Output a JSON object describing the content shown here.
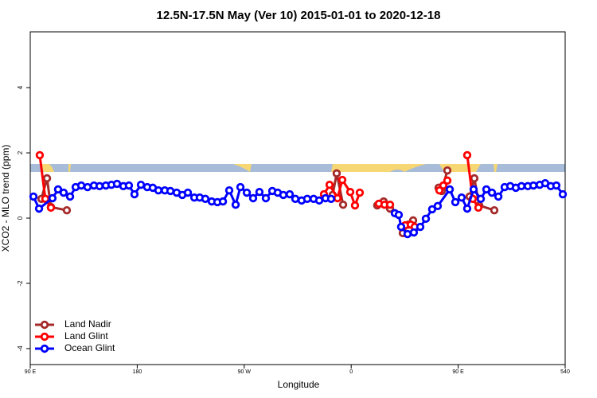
{
  "chart_data": {
    "type": "line",
    "title": "12.5N-17.5N May (Ver 10)   2015-01-01 to 2020-12-18",
    "x_label": "Longitude",
    "y_label": "XCO2 - MLO trend (ppm)",
    "xlim": [
      90,
      540
    ],
    "ylim": [
      -4.49,
      5.71
    ],
    "xticks": [
      {
        "value": 90,
        "label": "90 E"
      },
      180,
      {
        "value": 270,
        "label": "90 W"
      },
      {
        "value": 360,
        "label": "0"
      },
      {
        "value": 450,
        "label": "90 E"
      },
      540
    ],
    "yticks": [
      -4,
      -2,
      0,
      2,
      4
    ],
    "legend": "bottom-left",
    "series": [
      {
        "name": "Land Nadir",
        "color": "#a52a2a",
        "x": [
          99.4,
          104.1,
          107.4,
          120.8,
          null,
          344.4,
          347.8,
          353.2,
          null,
          381.9,
          387.3,
          392.7,
          null,
          403.4,
          408.1,
          412.1,
          null,
          433.5,
          436.2,
          440.9,
          null,
          459.6,
          463.6,
          467.7,
          480.4
        ],
        "values": [
          0.59,
          1.22,
          0.34,
          0.24,
          null,
          0.71,
          1.37,
          0.41,
          null,
          0.39,
          0.51,
          0.29,
          null,
          -0.46,
          -0.2,
          -0.07,
          null,
          0.93,
          0.83,
          1.46,
          null,
          0.66,
          1.22,
          0.39,
          0.24
        ]
      },
      {
        "name": "Land Glint",
        "color": "#ff0000",
        "x": [
          98.0,
          102.7,
          107.4,
          null,
          337.1,
          341.8,
          348.5,
          352.5,
          359.2,
          363.2,
          367.2,
          null,
          383.3,
          388.0,
          392.7,
          null,
          405.4,
          410.1,
          413.4,
          null,
          434.2,
          437.5,
          440.9,
          null,
          457.6,
          462.3,
          467.0
        ],
        "values": [
          1.93,
          0.59,
          0.32,
          null,
          0.73,
          1.02,
          0.61,
          1.17,
          0.8,
          0.39,
          0.78,
          null,
          0.44,
          0.41,
          0.41,
          null,
          -0.22,
          -0.2,
          -0.27,
          null,
          0.85,
          1.0,
          1.15,
          null,
          1.93,
          0.59,
          0.32
        ]
      },
      {
        "name": "Ocean Glint",
        "color": "#0000ff",
        "x": [
          92.7,
          97.4,
          108.7,
          113.4,
          118.1,
          123.5,
          128.2,
          132.9,
          138.2,
          143.6,
          148.3,
          153.6,
          158.3,
          163.0,
          168.3,
          173.0,
          177.7,
          183.1,
          188.4,
          193.1,
          197.8,
          203.2,
          207.9,
          213.2,
          217.9,
          222.6,
          228.0,
          232.6,
          237.3,
          242.7,
          247.4,
          252.1,
          257.4,
          262.8,
          266.8,
          272.2,
          277.5,
          282.8,
          288.2,
          293.6,
          298.2,
          302.9,
          308.3,
          313.0,
          318.3,
          323.0,
          328.4,
          333.1,
          338.4,
          343.1,
          null,
          396.7,
          400.0,
          402.0,
          407.4,
          412.7,
          418.1,
          422.8,
          428.1,
          432.8,
          442.9,
          447.6,
          452.9,
          457.6,
          463.0,
          469.0,
          473.7,
          478.4,
          483.8,
          489.1,
          493.8,
          498.5,
          503.2,
          508.6,
          513.3,
          518.6,
          523.2,
          527.9,
          532.6,
          538.0
        ],
        "values": [
          0.66,
          0.29,
          0.61,
          0.88,
          0.78,
          0.66,
          0.95,
          1.0,
          0.95,
          1.0,
          0.98,
          1.0,
          1.02,
          1.05,
          0.98,
          1.0,
          0.73,
          1.02,
          0.95,
          0.93,
          0.85,
          0.85,
          0.83,
          0.78,
          0.71,
          0.78,
          0.63,
          0.63,
          0.59,
          0.51,
          0.49,
          0.51,
          0.85,
          0.41,
          0.95,
          0.78,
          0.61,
          0.8,
          0.61,
          0.83,
          0.78,
          0.71,
          0.73,
          0.59,
          0.54,
          0.59,
          0.59,
          0.54,
          0.61,
          0.59,
          null,
          0.15,
          0.1,
          -0.27,
          -0.49,
          -0.44,
          -0.27,
          -0.02,
          0.27,
          0.37,
          0.88,
          0.49,
          0.63,
          0.29,
          0.88,
          0.59,
          0.88,
          0.78,
          0.66,
          0.95,
          0.98,
          0.93,
          0.98,
          0.98,
          1.0,
          1.02,
          1.07,
          0.98,
          1.0,
          0.73
        ]
      }
    ]
  }
}
